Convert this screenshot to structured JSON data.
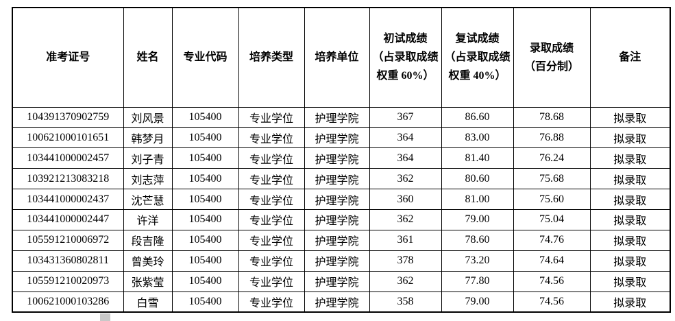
{
  "table": {
    "columns": [
      {
        "key": "exam-number",
        "label": "准考证号"
      },
      {
        "key": "name",
        "label": "姓名"
      },
      {
        "key": "major-code",
        "label": "专业代码"
      },
      {
        "key": "training-type",
        "label": "培养类型"
      },
      {
        "key": "training-unit",
        "label": "培养单位"
      },
      {
        "key": "initial-score",
        "label": "初试成绩\n（占录取成绩权重 60%）"
      },
      {
        "key": "retest-score",
        "label": "复试成绩\n（占录取成绩权重 40%）"
      },
      {
        "key": "admission-score",
        "label": "录取成绩\n（百分制）"
      },
      {
        "key": "remark",
        "label": "备注"
      }
    ],
    "rows": [
      [
        "104391370902759",
        "刘风景",
        "105400",
        "专业学位",
        "护理学院",
        "367",
        "86.60",
        "78.68",
        "拟录取"
      ],
      [
        "100621000101651",
        "韩梦月",
        "105400",
        "专业学位",
        "护理学院",
        "364",
        "83.00",
        "76.88",
        "拟录取"
      ],
      [
        "103441000002457",
        "刘子青",
        "105400",
        "专业学位",
        "护理学院",
        "364",
        "81.40",
        "76.24",
        "拟录取"
      ],
      [
        "103921213083218",
        "刘志萍",
        "105400",
        "专业学位",
        "护理学院",
        "362",
        "80.60",
        "75.68",
        "拟录取"
      ],
      [
        "103441000002437",
        "沈芒慧",
        "105400",
        "专业学位",
        "护理学院",
        "360",
        "81.00",
        "75.60",
        "拟录取"
      ],
      [
        "103441000002447",
        "许洋",
        "105400",
        "专业学位",
        "护理学院",
        "362",
        "79.00",
        "75.04",
        "拟录取"
      ],
      [
        "105591210006972",
        "段吉隆",
        "105400",
        "专业学位",
        "护理学院",
        "361",
        "78.60",
        "74.76",
        "拟录取"
      ],
      [
        "103431360802811",
        "曾美玲",
        "105400",
        "专业学位",
        "护理学院",
        "378",
        "73.20",
        "74.64",
        "拟录取"
      ],
      [
        "105591210020973",
        "张紫莹",
        "105400",
        "专业学位",
        "护理学院",
        "362",
        "77.80",
        "74.56",
        "拟录取"
      ],
      [
        "100621000103286",
        "白雪",
        "105400",
        "专业学位",
        "护理学院",
        "358",
        "79.00",
        "74.56",
        "拟录取"
      ]
    ]
  },
  "colors": {
    "border": "#000000",
    "text": "#000000",
    "background": "#ffffff",
    "scrollbar_thumb": "#c8c8c8"
  }
}
